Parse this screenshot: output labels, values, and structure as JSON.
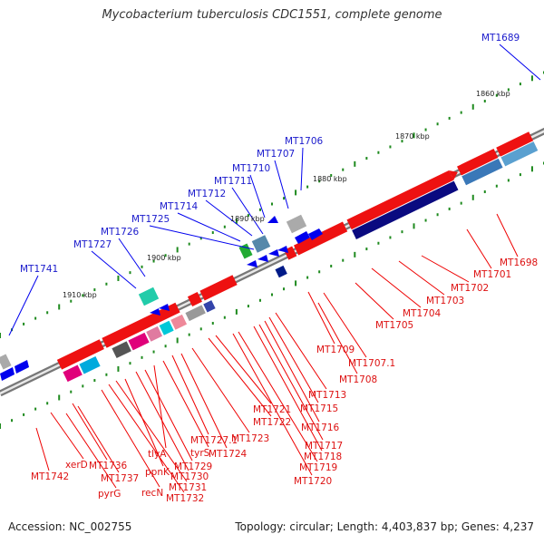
{
  "title": "Mycobacterium tuberculosis CDC1551, complete genome",
  "footer": {
    "accession": "Accession: NC_002755",
    "summary": "Topology: circular; Length: 4,403,837 bp; Genes: 4,237"
  },
  "colors": {
    "forward": "#0000ee",
    "reverse": "#ee0000",
    "backbone": "#888888",
    "tick_dot": "#1e8a1e"
  },
  "kbp_ticks": [
    "1860 kbp",
    "1870 kbp",
    "1880 kbp",
    "1890 kbp",
    "1900 kbp",
    "1910 kbp"
  ],
  "forward_labels": [
    "MT1689",
    "MT1706",
    "MT1707",
    "MT1710",
    "MT1711",
    "MT1712",
    "MT1714",
    "MT1725",
    "MT1726",
    "MT1727",
    "MT1741"
  ],
  "reverse_labels": [
    "MT1698",
    "MT1701",
    "MT1702",
    "MT1703",
    "MT1704",
    "MT1705",
    "MT1709",
    "MT1707.1",
    "MT1708",
    "MT1713",
    "MT1715",
    "MT1716",
    "MT1717",
    "MT1718",
    "MT1719",
    "MT1720",
    "MT1721",
    "MT1722",
    "MT1723",
    "MT1724",
    "MT1727.1",
    "tyrS",
    "tlyA",
    "MT1729",
    "MT1730",
    "ppnK",
    "MT1731",
    "MT1732",
    "recN",
    "MT1736",
    "MT1737",
    "pyrG",
    "xerD",
    "MT1742"
  ]
}
